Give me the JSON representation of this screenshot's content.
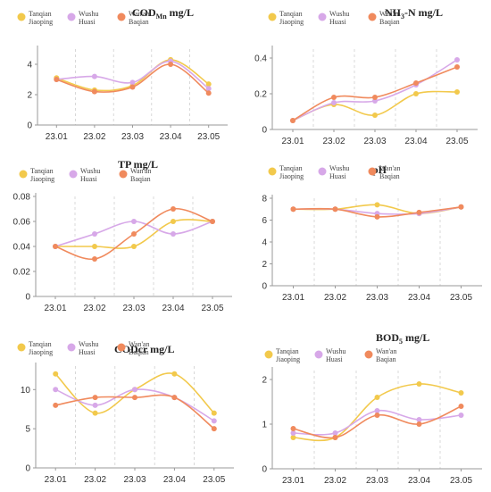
{
  "colors": {
    "Tanqian Jiaoping": "#F2C94C",
    "Wushu Huasi": "#D7A8E8",
    "Wan'an Baqian": "#F08A5D",
    "axis": "#9a9a9a",
    "divider": "#cfcfcf"
  },
  "legend": [
    {
      "line1": "Tanqian",
      "line2": "Jiaoping",
      "series": "Tanqian Jiaoping"
    },
    {
      "line1": "Wushu",
      "line2": "Huasi",
      "series": "Wushu Huasi"
    },
    {
      "line1": "Wan'an",
      "line2": "Baqian",
      "series": "Wan'an Baqian"
    }
  ],
  "chart_data": [
    {
      "type": "line",
      "title": "COD",
      "title_sub": "Mn",
      "title_unit": " mg/L",
      "categories": [
        "23.01",
        "23.02",
        "23.03",
        "23.04",
        "23.05"
      ],
      "ylim": [
        0,
        5
      ],
      "yticks": [
        0,
        2,
        4
      ],
      "grid": false,
      "legend_position": "top",
      "series": [
        {
          "name": "Tanqian Jiaoping",
          "values": [
            3.1,
            2.3,
            2.6,
            4.3,
            2.7
          ]
        },
        {
          "name": "Wushu Huasi",
          "values": [
            3.0,
            3.2,
            2.8,
            4.2,
            2.4
          ]
        },
        {
          "name": "Wan'an Baqian",
          "values": [
            3.0,
            2.2,
            2.5,
            4.0,
            2.1
          ]
        }
      ]
    },
    {
      "type": "line",
      "title": "NH",
      "title_sub": "3",
      "title_unit": "-N mg/L",
      "categories": [
        "23.01",
        "23.02",
        "23.03",
        "23.04",
        "23.05"
      ],
      "ylim": [
        0,
        0.45
      ],
      "yticks": [
        0,
        0.2,
        0.4
      ],
      "grid": false,
      "legend_position": "top",
      "series": [
        {
          "name": "Tanqian Jiaoping",
          "values": [
            0.05,
            0.14,
            0.08,
            0.2,
            0.21
          ]
        },
        {
          "name": "Wushu Huasi",
          "values": [
            0.05,
            0.15,
            0.16,
            0.25,
            0.39
          ]
        },
        {
          "name": "Wan'an Baqian",
          "values": [
            0.05,
            0.18,
            0.18,
            0.26,
            0.35
          ]
        }
      ]
    },
    {
      "type": "line",
      "title": "TP",
      "title_sub": "",
      "title_unit": " mg/L",
      "categories": [
        "23.01",
        "23.02",
        "23.03",
        "23.04",
        "23.05"
      ],
      "ylim": [
        0,
        0.08
      ],
      "yticks": [
        0,
        0.02,
        0.04,
        0.06,
        0.08
      ],
      "grid": false,
      "legend_position": "top",
      "series": [
        {
          "name": "Tanqian Jiaoping",
          "values": [
            0.04,
            0.04,
            0.04,
            0.06,
            0.06
          ]
        },
        {
          "name": "Wushu Huasi",
          "values": [
            0.04,
            0.05,
            0.06,
            0.05,
            0.06
          ]
        },
        {
          "name": "Wan'an Baqian",
          "values": [
            0.04,
            0.03,
            0.05,
            0.07,
            0.06
          ]
        }
      ]
    },
    {
      "type": "line",
      "title": "pH",
      "title_sub": "",
      "title_unit": "",
      "categories": [
        "23.01",
        "23.02",
        "23.03",
        "23.04",
        "23.05"
      ],
      "ylim": [
        0,
        8
      ],
      "yticks": [
        0,
        2,
        4,
        6,
        8
      ],
      "grid": false,
      "legend_position": "top",
      "series": [
        {
          "name": "Tanqian Jiaoping",
          "values": [
            7.0,
            7.0,
            7.4,
            6.6,
            7.2
          ]
        },
        {
          "name": "Wushu Huasi",
          "values": [
            7.0,
            7.0,
            6.6,
            6.6,
            7.2
          ]
        },
        {
          "name": "Wan'an Baqian",
          "values": [
            7.0,
            7.0,
            6.3,
            6.7,
            7.2
          ]
        }
      ]
    },
    {
      "type": "line",
      "title": "CODcr",
      "title_sub": "",
      "title_unit": " mg/L",
      "categories": [
        "23.01",
        "23.02",
        "23.03",
        "23.04",
        "23.05"
      ],
      "ylim": [
        0,
        13
      ],
      "yticks": [
        0,
        5,
        10
      ],
      "grid": false,
      "legend_position": "top",
      "series": [
        {
          "name": "Tanqian Jiaoping",
          "values": [
            12,
            7,
            10,
            12,
            7
          ]
        },
        {
          "name": "Wushu Huasi",
          "values": [
            10,
            8,
            10,
            9,
            6
          ]
        },
        {
          "name": "Wan'an Baqian",
          "values": [
            8,
            9,
            9,
            9,
            5
          ]
        }
      ]
    },
    {
      "type": "line",
      "title": "BOD",
      "title_sub": "5",
      "title_unit": " mg/L",
      "categories": [
        "23.01",
        "23.02",
        "23.03",
        "23.04",
        "23.05"
      ],
      "ylim": [
        0,
        2.2
      ],
      "yticks": [
        0,
        1,
        2
      ],
      "grid": false,
      "legend_position": "top",
      "series": [
        {
          "name": "Tanqian Jiaoping",
          "values": [
            0.7,
            0.7,
            1.6,
            1.9,
            1.7
          ]
        },
        {
          "name": "Wushu Huasi",
          "values": [
            0.8,
            0.8,
            1.3,
            1.1,
            1.2
          ]
        },
        {
          "name": "Wan'an Baqian",
          "values": [
            0.9,
            0.7,
            1.2,
            1.0,
            1.4
          ]
        }
      ]
    }
  ]
}
